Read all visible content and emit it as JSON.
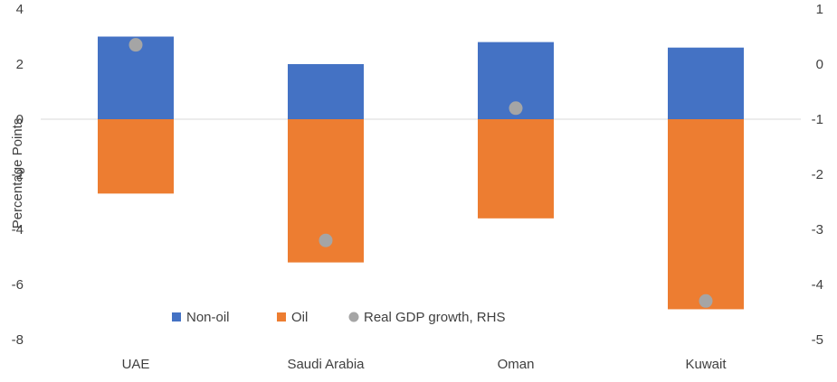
{
  "chart_data": {
    "type": "bar",
    "stacked": true,
    "categories": [
      "UAE",
      "Saudi Arabia",
      "Oman",
      "Kuwait"
    ],
    "series": [
      {
        "name": "Non-oil",
        "type": "bar",
        "axis": "left",
        "color": "#4472C4",
        "values": [
          3.0,
          2.0,
          2.8,
          2.6
        ]
      },
      {
        "name": "Oil",
        "type": "bar",
        "axis": "left",
        "color": "#ED7D31",
        "values": [
          -2.7,
          -5.2,
          -3.6,
          -6.9
        ]
      },
      {
        "name": "Real GDP growth, RHS",
        "type": "scatter",
        "axis": "right",
        "color": "#A5A5A5",
        "values": [
          0.35,
          -3.2,
          -0.8,
          -4.3
        ]
      }
    ],
    "ylabel": "Percentage Points",
    "ylim": [
      -8,
      4
    ],
    "yticks": [
      "4",
      "2",
      "0",
      "-2",
      "-4",
      "-6",
      "-8"
    ],
    "y2lim": [
      -5,
      1
    ],
    "y2ticks": [
      "1",
      "0",
      "-1",
      "-2",
      "-3",
      "-4",
      "-5"
    ],
    "grid": false,
    "zero_line": true,
    "legend_position": "bottom-inside"
  }
}
